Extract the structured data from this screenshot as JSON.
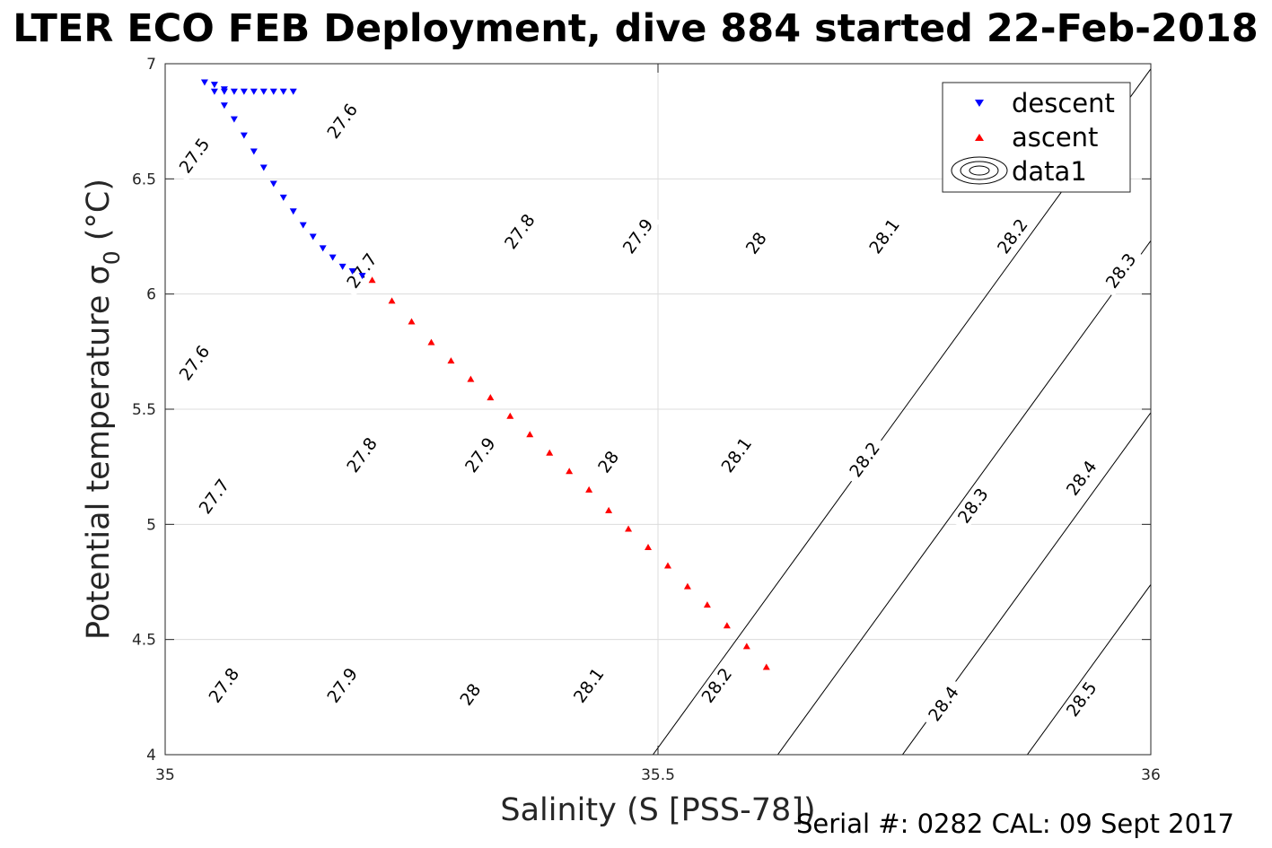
{
  "chart_data": {
    "type": "scatter",
    "title": "LTER ECO FEB Deployment, dive 884 started 22-Feb-2018",
    "xlabel": "Salinity (S [PSS-78])",
    "ylabel": "Potential temperature σ",
    "ylabel_subscript": "0",
    "ylabel_unit": " (°C)",
    "xlim": [
      35,
      36
    ],
    "ylim": [
      4,
      7
    ],
    "xticks": [
      35,
      35.5,
      36
    ],
    "xtick_labels": [
      "35",
      "35.5",
      "36"
    ],
    "yticks": [
      4,
      4.5,
      5,
      5.5,
      6,
      6.5,
      7
    ],
    "ytick_labels": [
      "4",
      "4.5",
      "5",
      "5.5",
      "6",
      "6.5",
      "7"
    ],
    "grid": true,
    "legend_position": "top-right",
    "legend": [
      "descent",
      "ascent",
      "data1"
    ],
    "series": [
      {
        "name": "descent",
        "marker": "triangle-down",
        "color": "#0000ff",
        "x": [
          35.13,
          35.12,
          35.11,
          35.1,
          35.09,
          35.08,
          35.07,
          35.06,
          35.06,
          35.05,
          35.04,
          35.05,
          35.06,
          35.07,
          35.08,
          35.09,
          35.1,
          35.11,
          35.12,
          35.13,
          35.14,
          35.15,
          35.16,
          35.17,
          35.18,
          35.19,
          35.2
        ],
        "y": [
          6.88,
          6.88,
          6.88,
          6.88,
          6.88,
          6.88,
          6.88,
          6.88,
          6.89,
          6.91,
          6.92,
          6.88,
          6.82,
          6.76,
          6.69,
          6.62,
          6.55,
          6.48,
          6.42,
          6.36,
          6.3,
          6.25,
          6.2,
          6.16,
          6.12,
          6.1,
          6.08
        ]
      },
      {
        "name": "ascent",
        "marker": "triangle-up",
        "color": "#ff0000",
        "x": [
          35.21,
          35.23,
          35.25,
          35.27,
          35.29,
          35.31,
          35.33,
          35.35,
          35.37,
          35.39,
          35.41,
          35.43,
          35.45,
          35.47,
          35.49,
          35.51,
          35.53,
          35.55,
          35.57,
          35.59,
          35.61
        ],
        "y": [
          6.06,
          5.97,
          5.88,
          5.79,
          5.71,
          5.63,
          5.55,
          5.47,
          5.39,
          5.31,
          5.23,
          5.15,
          5.06,
          4.98,
          4.9,
          4.82,
          4.73,
          4.65,
          4.56,
          4.47,
          4.38
        ]
      }
    ],
    "contours": {
      "name": "data1",
      "levels": [
        27.5,
        27.6,
        27.7,
        27.8,
        27.9,
        28,
        28.1,
        28.2,
        28.3,
        28.4,
        28.5
      ],
      "labels": [
        {
          "text": "27.5",
          "x": 35.03,
          "y": 6.6
        },
        {
          "text": "27.6",
          "x": 35.18,
          "y": 6.75
        },
        {
          "text": "27.6",
          "x": 35.03,
          "y": 5.7
        },
        {
          "text": "27.7",
          "x": 35.2,
          "y": 6.1
        },
        {
          "text": "27.7",
          "x": 35.05,
          "y": 5.12
        },
        {
          "text": "27.8",
          "x": 35.36,
          "y": 6.27
        },
        {
          "text": "27.8",
          "x": 35.2,
          "y": 5.3
        },
        {
          "text": "27.8",
          "x": 35.06,
          "y": 4.3
        },
        {
          "text": "27.9",
          "x": 35.48,
          "y": 6.25
        },
        {
          "text": "27.9",
          "x": 35.32,
          "y": 5.3
        },
        {
          "text": "27.9",
          "x": 35.18,
          "y": 4.3
        },
        {
          "text": "28",
          "x": 35.6,
          "y": 6.22
        },
        {
          "text": "28",
          "x": 35.45,
          "y": 5.27
        },
        {
          "text": "28",
          "x": 35.31,
          "y": 4.26
        },
        {
          "text": "28.1",
          "x": 35.73,
          "y": 6.25
        },
        {
          "text": "28.1",
          "x": 35.58,
          "y": 5.3
        },
        {
          "text": "28.1",
          "x": 35.43,
          "y": 4.3
        },
        {
          "text": "28.2",
          "x": 35.86,
          "y": 6.25
        },
        {
          "text": "28.2",
          "x": 35.71,
          "y": 5.28
        },
        {
          "text": "28.2",
          "x": 35.56,
          "y": 4.3
        },
        {
          "text": "28.3",
          "x": 35.97,
          "y": 6.1
        },
        {
          "text": "28.3",
          "x": 35.82,
          "y": 5.08
        },
        {
          "text": "28.4",
          "x": 35.93,
          "y": 5.2
        },
        {
          "text": "28.4",
          "x": 35.79,
          "y": 4.22
        },
        {
          "text": "28.5",
          "x": 35.93,
          "y": 4.24
        }
      ]
    }
  },
  "footer": {
    "serial_text": "Serial #: 0282  CAL: 09 Sept 2017"
  }
}
